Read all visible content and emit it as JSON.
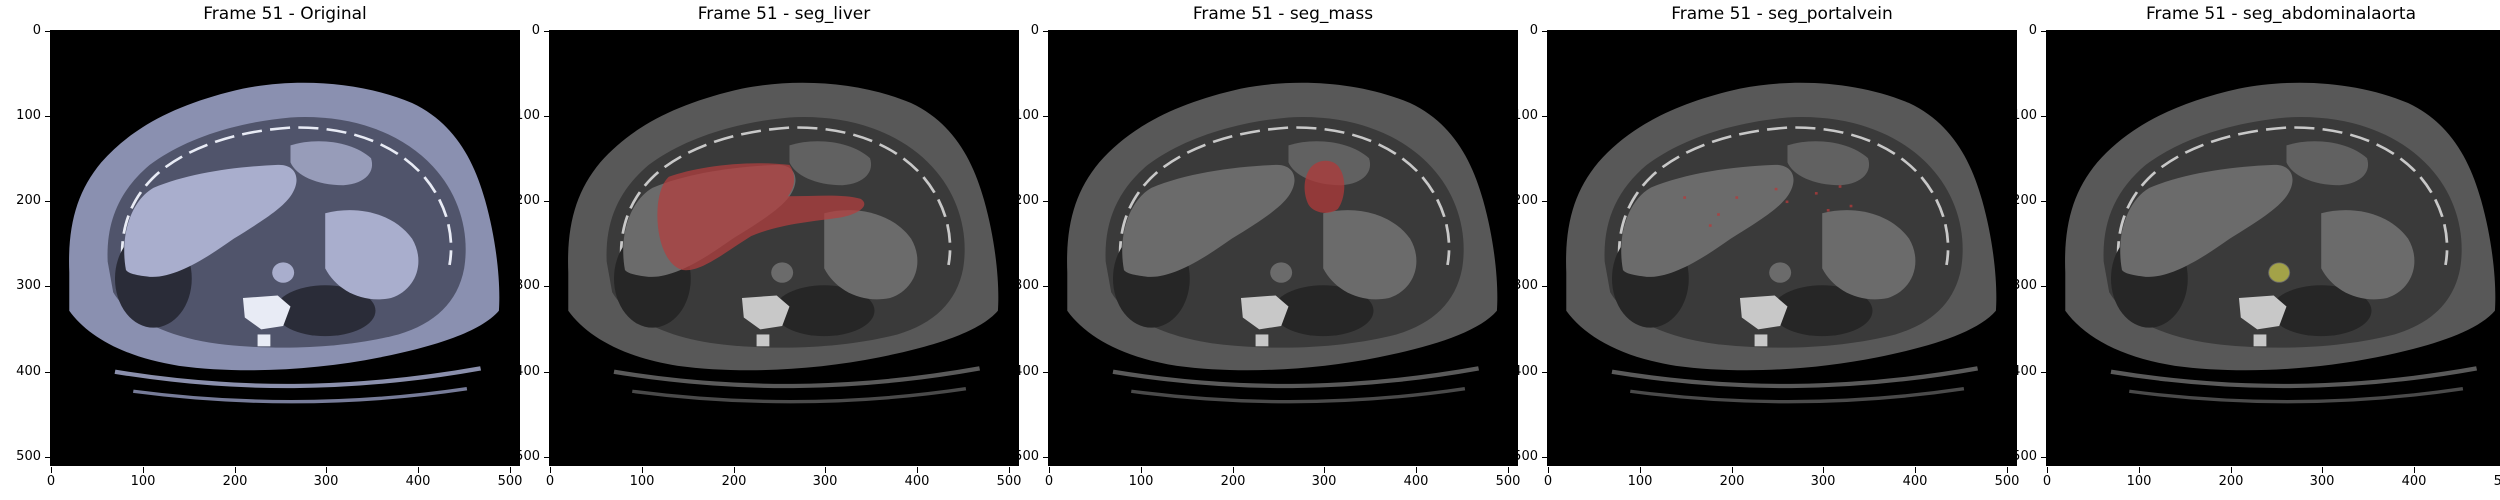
{
  "panels": [
    {
      "title": "Frame 51 - Original",
      "mode": "original",
      "overlay": "none"
    },
    {
      "title": "Frame 51 - seg_liver",
      "mode": "gray",
      "overlay": "liver"
    },
    {
      "title": "Frame 51 - seg_mass",
      "mode": "gray",
      "overlay": "mass"
    },
    {
      "title": "Frame 51 - seg_portalvein",
      "mode": "gray",
      "overlay": "portalvein"
    },
    {
      "title": "Frame 51 - seg_abdominalaorta",
      "mode": "gray",
      "overlay": "aorta"
    }
  ],
  "axes": {
    "xticks": [
      "0",
      "100",
      "200",
      "300",
      "400",
      "500"
    ],
    "yticks": [
      "0",
      "100",
      "200",
      "300",
      "400",
      "500"
    ],
    "extent": [
      0,
      511
    ]
  },
  "colors": {
    "liver_overlay": "#b13f3f",
    "mass_overlay": "#b03a3a",
    "portalvein_overlay": "#b63a3a",
    "aorta_overlay": "#b5b43c",
    "original_tint": "#8a90b0"
  }
}
